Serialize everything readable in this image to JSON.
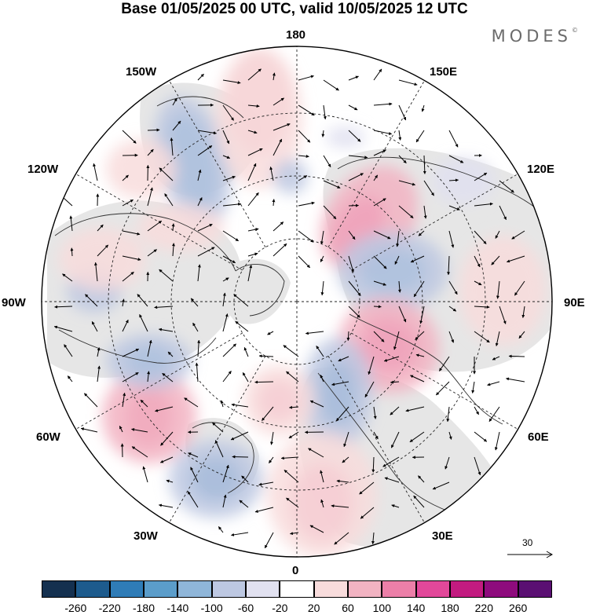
{
  "title": "Base 01/05/2025 00 UTC, valid 10/05/2025 12 UTC",
  "logo": "MODES",
  "logo_mark": "©",
  "map": {
    "projection": "north-polar-stereographic",
    "longitude_labels": {
      "top": "180",
      "bottom": "0",
      "left": "90W",
      "right": "90E",
      "upper_left_1": "150W",
      "upper_left_2": "120W",
      "lower_left_1": "60W",
      "lower_left_2": "30W",
      "upper_right_1": "150E",
      "upper_right_2": "120E",
      "lower_right_1": "60E",
      "lower_right_2": "30E"
    },
    "vector_scale": "30",
    "colors": {
      "land_shade": "#e6e6e6",
      "coastline": "#303030",
      "grid": "#222222"
    }
  },
  "colorbar": {
    "colors": [
      "#14304f",
      "#1d5b8d",
      "#2f7cb7",
      "#5b9dca",
      "#8fb6d9",
      "#bdc8e2",
      "#e1e1f0",
      "#ffffff",
      "#f8dcdc",
      "#f2b3c2",
      "#ec7fa8",
      "#e2489a",
      "#c21b80",
      "#8e0b7d",
      "#5a0f72"
    ],
    "ticks": [
      "-260",
      "-220",
      "-180",
      "-140",
      "-100",
      "-60",
      "-20",
      "20",
      "60",
      "100",
      "140",
      "180",
      "220",
      "260"
    ]
  }
}
